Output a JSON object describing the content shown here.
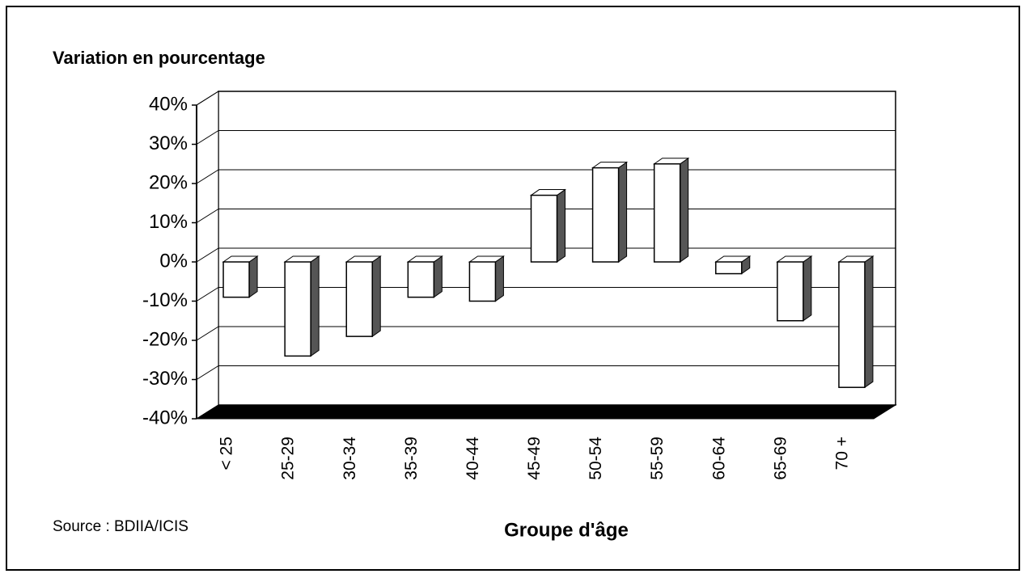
{
  "chart_data": {
    "type": "bar3d",
    "title": "Variation en pourcentage",
    "x_label": "Groupe d'âge",
    "source": "Source : BDIIA/ICIS",
    "categories": [
      "< 25",
      "25-29",
      "30-34",
      "35-39",
      "40-44",
      "45-49",
      "50-54",
      "55-59",
      "60-64",
      "65-69",
      "70 +"
    ],
    "values": [
      -9,
      -24,
      -19,
      -9,
      -10,
      17,
      24,
      25,
      -3,
      -15,
      -32
    ],
    "color": "#ffffff",
    "side_color": "#555555",
    "floor_color": "#000000",
    "ylim": [
      -40,
      40
    ],
    "yticks": [
      {
        "value": -40,
        "label": "-40%"
      },
      {
        "value": -30,
        "label": "-30%"
      },
      {
        "value": -20,
        "label": "-20%"
      },
      {
        "value": -10,
        "label": "-10%"
      },
      {
        "value": 0,
        "label": "0%"
      },
      {
        "value": 10,
        "label": "10%"
      },
      {
        "value": 20,
        "label": "20%"
      },
      {
        "value": 30,
        "label": "30%"
      },
      {
        "value": 40,
        "label": "40%"
      }
    ],
    "grid": true
  }
}
